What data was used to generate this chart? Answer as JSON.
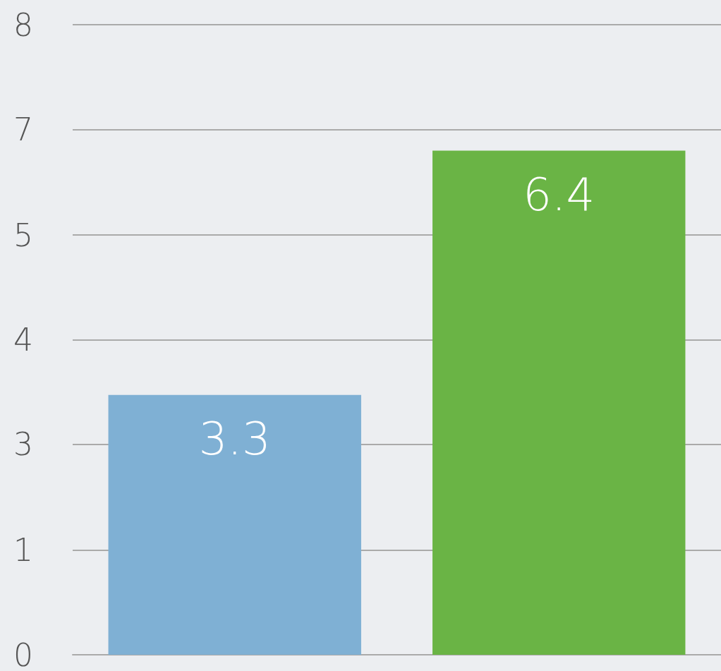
{
  "chart_data": {
    "type": "bar",
    "categories": [
      null,
      null
    ],
    "values": [
      3.3,
      6.4
    ],
    "colors": [
      "#7fb0d4",
      "#6ab445"
    ],
    "ylim": [
      0,
      8
    ],
    "yticks": [
      {
        "value": 0,
        "label": "0"
      },
      {
        "value": 1.33,
        "label": "1"
      },
      {
        "value": 2.67,
        "label": "3"
      },
      {
        "value": 4,
        "label": "4"
      },
      {
        "value": 5.33,
        "label": "5"
      },
      {
        "value": 6.67,
        "label": "7"
      },
      {
        "value": 8,
        "label": "8"
      }
    ],
    "grid": "y",
    "data_labels": true
  }
}
